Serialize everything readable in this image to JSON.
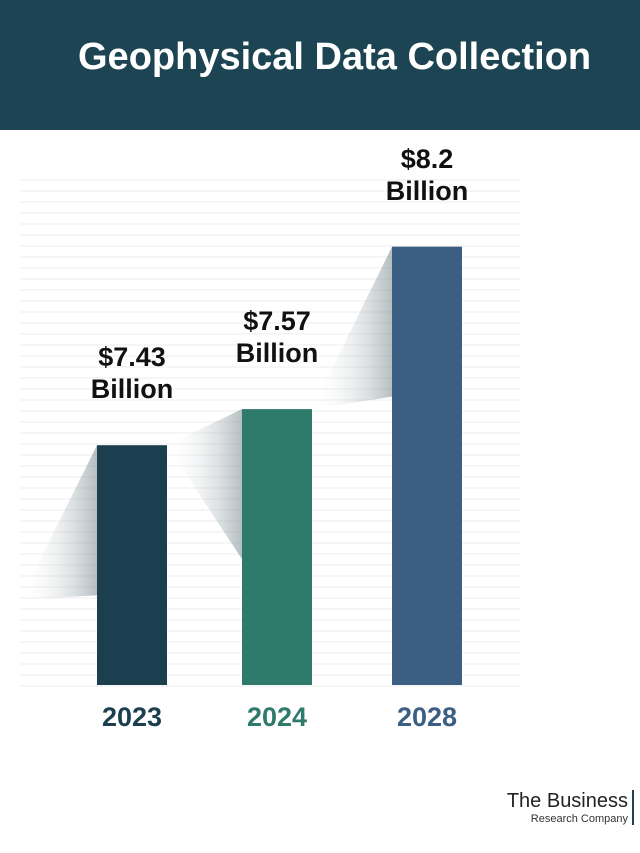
{
  "chart_data": {
    "type": "bar",
    "title": "Geophysical Data Collection",
    "categories": [
      "2023",
      "2024",
      "2028"
    ],
    "values": [
      7.43,
      7.57,
      8.2
    ],
    "value_labels": [
      "$7.43 Billion",
      "$7.57 Billion",
      "$8.2 Billion"
    ],
    "colors": [
      "#1b3f4e",
      "#2e7a6b",
      "#3a5f82"
    ],
    "ylim": [
      6.5,
      8.35
    ]
  },
  "logo": {
    "line1": "The Business",
    "line2": "Research Company"
  }
}
